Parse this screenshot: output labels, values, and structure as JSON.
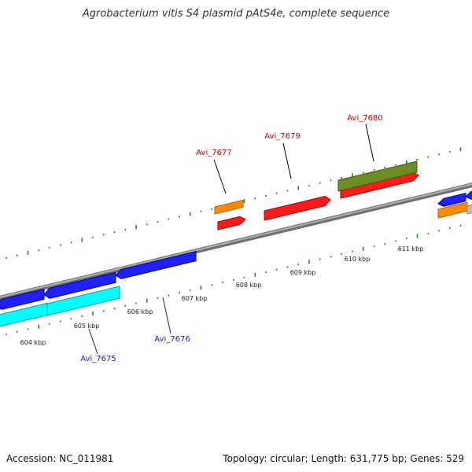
{
  "title": "Agrobacterium vitis S4 plasmid pAtS4e, complete sequence",
  "footer": {
    "accession": "Accession: NC_011981",
    "summary": "Topology: circular; Length: 631,775 bp; Genes: 529"
  },
  "colors": {
    "backbone": "#888888",
    "ticks": "#2e7d20",
    "label_red": "#cc0000",
    "label_blue": "#1a1aaa"
  },
  "scale_labels": [
    "604 kbp",
    "605 kbp",
    "606 kbp",
    "607 kbp",
    "608 kbp",
    "609 kbp",
    "610 kbp",
    "611 kbp"
  ],
  "gene_labels": [
    {
      "id": "Avi_7677",
      "color": "red"
    },
    {
      "id": "Avi_7679",
      "color": "red"
    },
    {
      "id": "Avi_7680",
      "color": "red"
    },
    {
      "id": "Avi_7675",
      "color": "blue"
    },
    {
      "id": "Avi_7676",
      "color": "blue"
    }
  ]
}
